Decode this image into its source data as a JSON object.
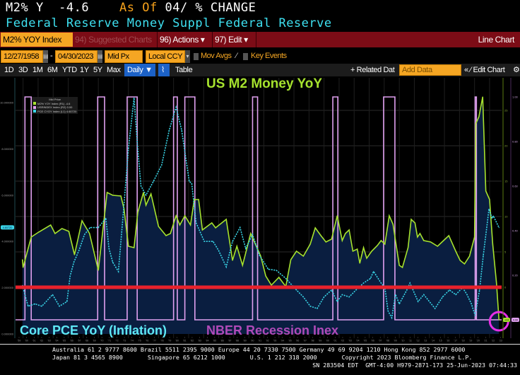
{
  "header": {
    "ticker_line": "M2% Y  -4.6",
    "as_of_label": "As Of",
    "as_of_rest": "04/ % CHANGE",
    "description": "Federal Reserve Money Suppl Federal Reserve"
  },
  "toolbar": {
    "security": "M2% YOY Index",
    "suggested_charts": "94) Suggested Charts",
    "actions": "96) Actions ▾",
    "edit": "97) Edit ▾",
    "chart_type": "Line Chart",
    "start_date": "12/27/1958",
    "end_date": "04/30/2023",
    "date_sep": "-",
    "price_field": "Mid Px",
    "currency": "Local CCY",
    "mov_avgs": "Mov Avgs",
    "key_events": "Key Events",
    "periods": [
      "1D",
      "3D",
      "1M",
      "6M",
      "YTD",
      "1Y",
      "5Y",
      "Max"
    ],
    "frequency": "Daily ▼",
    "table": "Table",
    "related_data": "+ Related Dat",
    "add_data_placeholder": "Add Data",
    "edit_chart": "« ⁄ Edit Chart",
    "gear": "⚙"
  },
  "chart_data": {
    "type": "line",
    "annotations": {
      "title": "US M2 Money YoY",
      "pce_label": "Core PCE YoY (Inflation)",
      "recession_label": "NBER Recession Inex"
    },
    "legend": {
      "heading": "Mid Price",
      "entries": [
        {
          "label": "M2% YOY Index   (R1)",
          "value": "-4.6"
        },
        {
          "label": "USRINDEX Index   (R2)",
          "value": "0.00"
        },
        {
          "label": "PCE CYOY Index   (L1)",
          "value": "4.60720"
        }
      ],
      "placement": "top-left"
    },
    "x_range": [
      "1958-12",
      "2023-04"
    ],
    "x_tick_labels": [
      "'59",
      "'60",
      "'61",
      "'62",
      "'63",
      "'64",
      "'65",
      "'66",
      "'67",
      "'68",
      "'69",
      "'70",
      "'71",
      "'72",
      "'73",
      "'74",
      "'75",
      "'76",
      "'77",
      "'78",
      "'79",
      "'80",
      "'81",
      "'82",
      "'83",
      "'84",
      "'85",
      "'86",
      "'87",
      "'88",
      "'89",
      "'90",
      "'91",
      "'92",
      "'93",
      "'94",
      "'95",
      "'96",
      "'97",
      "'98",
      "'99",
      "'00",
      "'01",
      "'02",
      "'03",
      "'04",
      "'05",
      "'06",
      "'07",
      "'08",
      "'09",
      "'10",
      "'11",
      "'12",
      "'13",
      "'14",
      "'15",
      "'16",
      "'17",
      "'18",
      "'19",
      "'20",
      "'21",
      "'22",
      "'23"
    ],
    "axes": {
      "left": {
        "series": "PCE CYOY Index",
        "range": [
          0,
          10.5
        ],
        "ticks": [
          "10.000000",
          "8.000000",
          "6.000000",
          "4.000000",
          "2.000000",
          "0.000000"
        ],
        "tick_values": [
          10,
          8,
          6,
          4,
          2,
          0
        ],
        "last_value": "4.60720"
      },
      "right1": {
        "series": "M2% YOY Index",
        "range": [
          -5,
          27
        ],
        "ticks": [
          "25",
          "20",
          "15",
          "10",
          "5",
          "0"
        ],
        "tick_values": [
          25,
          20,
          15,
          10,
          5,
          0
        ],
        "last_value": "-4.6"
      },
      "right2": {
        "series": "USRINDEX Index",
        "range": [
          0,
          1.05
        ],
        "ticks": [
          "1.00",
          "0.80",
          "0.60",
          "0.40",
          "0.20"
        ],
        "tick_values": [
          1,
          0.8,
          0.6,
          0.4,
          0.2
        ],
        "last_value": "0.00"
      }
    },
    "grid": true,
    "horizontal_reference_line": {
      "axis": "right1",
      "value": 0,
      "color": "#e8212b"
    },
    "highlight_circle": {
      "date": "2023-04",
      "axis": "right1",
      "value": -4.6,
      "color": "#e62ee6"
    },
    "series": [
      {
        "name": "M2% YOY Index",
        "axis": "right1",
        "color": "#a6e22e",
        "style": "solid-area",
        "fill": "#0a1e40",
        "dates": [
          "1959-12",
          "1960-01",
          "1961-02",
          "1962-02",
          "1963-09",
          "1964-04",
          "1965-03",
          "1966-02",
          "1966-11",
          "1967-11",
          "1968-11",
          "1970-01",
          "1971-03",
          "1971-12",
          "1973-01",
          "1973-06",
          "1974-01",
          "1974-10",
          "1975-04",
          "1976-01",
          "1976-05",
          "1977-01",
          "1978-01",
          "1979-01",
          "1979-08",
          "1980-05",
          "1980-11",
          "1981-07",
          "1982-04",
          "1982-10",
          "1983-05",
          "1983-11",
          "1985-02",
          "1985-08",
          "1987-01",
          "1987-11",
          "1988-06",
          "1989-03",
          "1990-04",
          "1991-08",
          "1992-04",
          "1993-01",
          "1994-01",
          "1994-12",
          "1995-08",
          "1996-05",
          "1997-04",
          "1998-03",
          "1998-11",
          "1999-08",
          "2000-04",
          "2001-01",
          "2001-10",
          "2002-06",
          "2002-11",
          "2003-05",
          "2003-11",
          "2004-06",
          "2004-10",
          "2005-04",
          "2005-09",
          "2006-05",
          "2007-02",
          "2007-08",
          "2008-02",
          "2008-09",
          "2009-03",
          "2010-01",
          "2010-06",
          "2011-03",
          "2011-08",
          "2012-02",
          "2012-06",
          "2012-10",
          "2013-04",
          "2014-03",
          "2015-02",
          "2016-02",
          "2016-08",
          "2017-07",
          "2018-02",
          "2018-09",
          "2019-05",
          "2020-01",
          "2020-03",
          "2020-08",
          "2021-02",
          "2021-07",
          "2022-01",
          "2022-06",
          "2022-12",
          "2023-04"
        ],
        "values": [
          3.9,
          2.8,
          7.1,
          7.8,
          8.8,
          7.6,
          8.3,
          7.9,
          4.6,
          9.4,
          7.6,
          2.4,
          13.4,
          13.0,
          12.9,
          11.1,
          5.8,
          5.6,
          10.6,
          13.4,
          11.6,
          13.2,
          8.6,
          7.3,
          7.6,
          10.1,
          8.8,
          10.1,
          8.8,
          12.4,
          12.4,
          8.1,
          9.1,
          8.4,
          9.6,
          3.8,
          5.8,
          3.1,
          7.6,
          4.4,
          1.6,
          0.3,
          1.4,
          0.1,
          3.9,
          5.1,
          4.4,
          6.1,
          8.4,
          7.3,
          6.4,
          6.8,
          10.1,
          6.6,
          7.6,
          8.1,
          5.1,
          5.4,
          3.4,
          5.6,
          4.1,
          5.1,
          5.9,
          6.6,
          6.1,
          10.1,
          8.9,
          3.1,
          2.8,
          5.6,
          9.6,
          9.1,
          7.1,
          7.6,
          6.6,
          6.4,
          5.8,
          6.8,
          7.3,
          5.1,
          3.8,
          3.3,
          4.4,
          7.1,
          23.1,
          24.1,
          26.9,
          13.6,
          12.4,
          6.1,
          0.6,
          -4.6
        ]
      },
      {
        "name": "PCE CYOY Index",
        "axis": "left",
        "color": "#3ad6e8",
        "style": "dotted",
        "dates": [
          "1959-12",
          "1960-09",
          "1961-08",
          "1962-07",
          "1963-12",
          "1964-11",
          "1965-11",
          "1966-04",
          "1966-10",
          "1967-06",
          "1968-03",
          "1968-12",
          "1970-01",
          "1971-01",
          "1971-06",
          "1971-12",
          "1972-09",
          "1973-06",
          "1974-01",
          "1974-10",
          "1975-03",
          "1975-09",
          "1976-05",
          "1977-05",
          "1978-06",
          "1979-06",
          "1980-05",
          "1981-02",
          "1982-02",
          "1982-06",
          "1983-01",
          "1984-02",
          "1985-04",
          "1986-01",
          "1987-01",
          "1987-11",
          "1988-11",
          "1989-08",
          "1990-07",
          "1991-06",
          "1992-08",
          "1993-09",
          "1994-12",
          "1996-05",
          "1997-04",
          "1998-03",
          "1999-02",
          "2000-01",
          "2001-01",
          "2001-10",
          "2002-06",
          "2003-05",
          "2004-04",
          "2005-04",
          "2006-03",
          "2006-08",
          "2007-08",
          "2008-02",
          "2008-07",
          "2009-01",
          "2009-07",
          "2010-01",
          "2011-01",
          "2011-06",
          "2012-07",
          "2013-04",
          "2014-10",
          "2015-10",
          "2016-09",
          "2017-07",
          "2018-06",
          "2019-01",
          "2019-08",
          "2020-02",
          "2020-09",
          "2021-03",
          "2021-08",
          "2021-12",
          "2022-05",
          "2022-07",
          "2023-04"
        ],
        "values": [
          2.1,
          1.2,
          1.3,
          1.2,
          1.7,
          1.2,
          1.4,
          2.5,
          3.1,
          3.6,
          4.3,
          4.6,
          4.6,
          5.0,
          3.7,
          3.1,
          2.7,
          5.6,
          8.0,
          10.2,
          8.3,
          6.4,
          6.0,
          6.6,
          7.3,
          8.8,
          9.8,
          8.8,
          6.6,
          6.5,
          4.8,
          4.0,
          4.0,
          3.6,
          2.9,
          4.0,
          4.6,
          3.7,
          4.3,
          3.4,
          2.8,
          2.75,
          2.4,
          1.9,
          1.6,
          1.2,
          1.1,
          1.6,
          1.9,
          1.4,
          1.7,
          1.6,
          1.9,
          2.2,
          2.4,
          2.7,
          2.2,
          2.0,
          1.0,
          0.7,
          1.7,
          1.3,
          1.9,
          2.2,
          1.4,
          1.7,
          1.1,
          1.6,
          1.9,
          1.7,
          2.0,
          1.7,
          1.3,
          0.8,
          1.9,
          3.4,
          4.5,
          5.4,
          5.0,
          5.1,
          4.6
        ]
      },
      {
        "name": "USRINDEX Index",
        "axis": "right2",
        "color": "#e0a0f0",
        "style": "step",
        "recession_periods": [
          [
            "1960-04",
            "1961-02"
          ],
          [
            "1969-12",
            "1970-11"
          ],
          [
            "1973-11",
            "1975-03"
          ],
          [
            "1980-01",
            "1980-07"
          ],
          [
            "1981-07",
            "1982-11"
          ],
          [
            "1990-07",
            "1991-03"
          ],
          [
            "2001-03",
            "2001-11"
          ],
          [
            "2007-12",
            "2009-06"
          ],
          [
            "2020-02",
            "2020-04"
          ]
        ]
      }
    ]
  },
  "footer": {
    "line1": "Australia 61 2 9777 8600 Brazil 5511 2395 9000 Europe 44 20 7330 7500 Germany 49 69 9204 1210 Hong Kong 852 2977 6000",
    "line2": "Japan 81 3 4565 8900       Singapore 65 6212 1000       U.S. 1 212 318 2000       Copyright 2023 Bloomberg Finance L.P.",
    "line3": "SN 283504 EDT  GMT-4:00 H979-2871-173 25-Jun-2023 07:44:33"
  }
}
